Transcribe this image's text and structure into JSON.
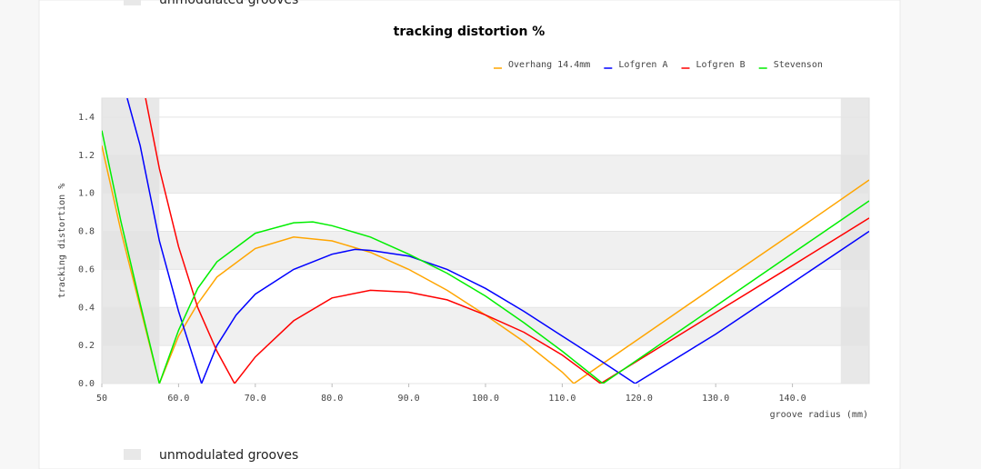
{
  "chart_data": {
    "type": "line",
    "title": "tracking distortion %",
    "y_label": "tracking distortion %",
    "x_label": "groove radius (mm)",
    "shading_label": "unmodulated grooves",
    "shaded_x_ranges": [
      [
        50,
        57.5
      ],
      [
        146.3,
        150
      ]
    ],
    "xlim": [
      50,
      150
    ],
    "ylim": [
      0,
      1.5
    ],
    "xticks": [
      50,
      {
        "value": 60,
        "label": "60.0"
      },
      {
        "value": 70,
        "label": "70.0"
      },
      {
        "value": 80,
        "label": "80.0"
      },
      {
        "value": 90,
        "label": "90.0"
      },
      {
        "value": 100,
        "label": "100.0"
      },
      {
        "value": 110,
        "label": "110.0"
      },
      {
        "value": 120,
        "label": "120.0"
      },
      {
        "value": 130,
        "label": "130.0"
      },
      {
        "value": 140,
        "label": "140.0"
      }
    ],
    "yticks": [
      {
        "value": 0,
        "label": "0.0"
      },
      0.2,
      0.4,
      0.6,
      0.8,
      {
        "value": 1,
        "label": "1.0"
      },
      1.2,
      1.4
    ],
    "grid": true,
    "legend": "top-right",
    "series": [
      {
        "name": "Overhang 14.4mm",
        "color": "#ffa500",
        "x": [
          50,
          52.5,
          55,
          57.5,
          60,
          62.5,
          65,
          70,
          75,
          80,
          85,
          90,
          95,
          100,
          105,
          110,
          111.5,
          120,
          130,
          140,
          150
        ],
        "values": [
          1.25,
          0.8,
          0.4,
          0,
          0.25,
          0.42,
          0.56,
          0.71,
          0.77,
          0.75,
          0.69,
          0.6,
          0.49,
          0.36,
          0.22,
          0.06,
          0,
          0.236,
          0.514,
          0.79,
          1.07
        ]
      },
      {
        "name": "Lofgren A",
        "color": "#0000ff",
        "x": [
          53.3,
          55,
          57.5,
          60,
          63,
          65,
          67.5,
          70,
          75,
          80,
          83,
          85,
          90,
          95,
          100,
          105,
          110,
          115,
          119.5,
          130,
          140,
          150
        ],
        "values": [
          1.5,
          1.25,
          0.75,
          0.38,
          0,
          0.2,
          0.36,
          0.47,
          0.6,
          0.68,
          0.705,
          0.7,
          0.67,
          0.6,
          0.5,
          0.38,
          0.25,
          0.12,
          0,
          0.26,
          0.53,
          0.8
        ]
      },
      {
        "name": "Lofgren B",
        "color": "#ff0000",
        "x": [
          55.7,
          57.5,
          60,
          62.5,
          65,
          67.3,
          70,
          75,
          80,
          85,
          90,
          95,
          100,
          105,
          110,
          115,
          120,
          130,
          140,
          150
        ],
        "values": [
          1.5,
          1.13,
          0.72,
          0.4,
          0.17,
          0,
          0.14,
          0.33,
          0.45,
          0.49,
          0.48,
          0.44,
          0.36,
          0.27,
          0.15,
          0,
          0.124,
          0.373,
          0.62,
          0.87
        ]
      },
      {
        "name": "Stevenson",
        "color": "#00ee00",
        "x": [
          50,
          52.5,
          55,
          57.5,
          60,
          62.5,
          65,
          70,
          75,
          77.5,
          80,
          85,
          90,
          95,
          100,
          105,
          110,
          115.3,
          120,
          130,
          140,
          150
        ],
        "values": [
          1.33,
          0.85,
          0.42,
          0,
          0.28,
          0.5,
          0.64,
          0.79,
          0.845,
          0.85,
          0.83,
          0.77,
          0.68,
          0.58,
          0.46,
          0.32,
          0.17,
          0,
          0.13,
          0.407,
          0.684,
          0.96
        ]
      }
    ]
  }
}
